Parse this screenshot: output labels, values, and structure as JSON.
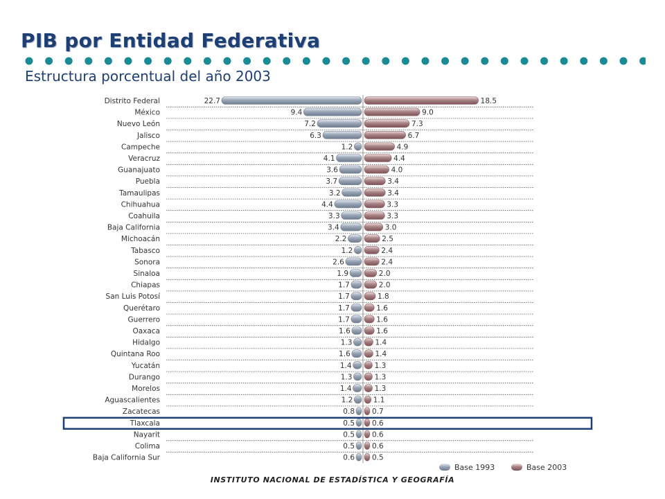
{
  "title": "PIB por Entidad Federativa",
  "subtitle": "Estructura porcentual del año 2003",
  "footer": "INSTITUTO NACIONAL DE ESTADÍSTICA Y GEOGRAFÍA",
  "colors": {
    "base1993": "#9aa6b6",
    "base2003": "#a98386",
    "title": "#1d3f73",
    "dots": "#1a8a94",
    "highlight": "#1d3f73"
  },
  "chart_data": {
    "type": "bar",
    "orientation": "horizontal-butterfly",
    "categories": [
      "Distrito Federal",
      "México",
      "Nuevo León",
      "Jalisco",
      "Campeche",
      "Veracruz",
      "Guanajuato",
      "Puebla",
      "Tamaulipas",
      "Chihuahua",
      "Coahuila",
      "Baja California",
      "Michoacán",
      "Tabasco",
      "Sonora",
      "Sinaloa",
      "Chiapas",
      "San Luis Potosí",
      "Querétaro",
      "Guerrero",
      "Oaxaca",
      "Hidalgo",
      "Quintana Roo",
      "Yucatán",
      "Durango",
      "Morelos",
      "Aguascalientes",
      "Zacatecas",
      "Tlaxcala",
      "Nayarit",
      "Colima",
      "Baja California Sur"
    ],
    "series": [
      {
        "name": "Base 1993",
        "values": [
          22.7,
          9.4,
          7.2,
          6.3,
          1.2,
          4.1,
          3.6,
          3.7,
          3.2,
          4.4,
          3.3,
          3.4,
          2.2,
          1.2,
          2.6,
          1.9,
          1.7,
          1.7,
          1.7,
          1.7,
          1.6,
          1.3,
          1.6,
          1.4,
          1.3,
          1.4,
          1.2,
          0.8,
          0.5,
          0.5,
          0.5,
          0.6
        ]
      },
      {
        "name": "Base 2003",
        "values": [
          18.5,
          9.0,
          7.3,
          6.7,
          4.9,
          4.4,
          4.0,
          3.4,
          3.4,
          3.3,
          3.3,
          3.0,
          2.5,
          2.4,
          2.4,
          2.0,
          2.0,
          1.8,
          1.6,
          1.6,
          1.6,
          1.4,
          1.4,
          1.3,
          1.3,
          1.3,
          1.1,
          0.7,
          0.6,
          0.6,
          0.6,
          0.5
        ]
      }
    ],
    "highlighted_category": "Tlaxcala",
    "legend": [
      "Base 1993",
      "Base 2003"
    ],
    "legend_position": "bottom-right"
  }
}
